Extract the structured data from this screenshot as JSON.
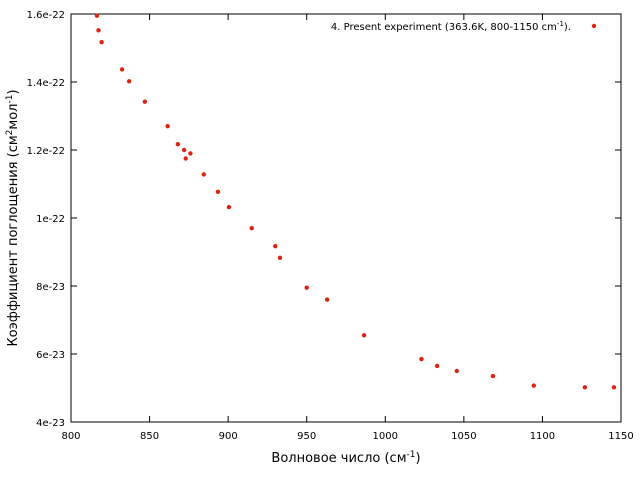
{
  "chart_data": {
    "type": "scatter",
    "xlabel": {
      "main": "Волновое число (см",
      "sup": "-1",
      "tail": ")"
    },
    "ylabel": {
      "main": "Коэффициент поглощения (см",
      "sup1": "2",
      "mid": "мол",
      "sup2": "-1",
      "tail": ")"
    },
    "xlim": [
      800,
      1150
    ],
    "ylim": [
      4e-23,
      1.6e-22
    ],
    "x_ticks": [
      800,
      850,
      900,
      950,
      1000,
      1050,
      1100,
      1150
    ],
    "y_ticks": [
      4e-23,
      6e-23,
      8e-23,
      1e-22,
      1.2e-22,
      1.4e-22,
      1.6e-22
    ],
    "x_tick_labels": [
      "800",
      "850",
      "900",
      "950",
      "1000",
      "1050",
      "1100",
      "1150"
    ],
    "y_tick_labels": [
      "4e-23",
      "6e-23",
      "8e-23",
      "1e-22",
      "1.2e-22",
      "1.4e-22",
      "1.6e-22"
    ],
    "grid": false,
    "legend_position": "top-right",
    "marker_color": "#dd2211",
    "series": [
      {
        "name": "4. Present experiment (363.6K, 800-1150 cm",
        "name_sup": "-1",
        "name_tail": ").",
        "x": [
          816.5,
          817.5,
          819.5,
          832.5,
          837,
          847,
          861.5,
          868,
          872,
          873,
          876,
          884.5,
          893.5,
          900.5,
          915,
          930,
          933,
          950,
          963,
          986.5,
          1023,
          1033,
          1045.5,
          1068.5,
          1094.5,
          1127,
          1145.5
        ],
        "y": [
          1.595e-22,
          1.552e-22,
          1.517e-22,
          1.437e-22,
          1.402e-22,
          1.342e-22,
          1.27e-22,
          1.217e-22,
          1.2e-22,
          1.175e-22,
          1.19e-22,
          1.128e-22,
          1.077e-22,
          1.032e-22,
          9.7e-23,
          9.17e-23,
          8.83e-23,
          7.95e-23,
          7.6e-23,
          6.55e-23,
          5.85e-23,
          5.65e-23,
          5.5e-23,
          5.35e-23,
          5.07e-23,
          5.02e-23,
          5.02e-23
        ]
      }
    ]
  }
}
